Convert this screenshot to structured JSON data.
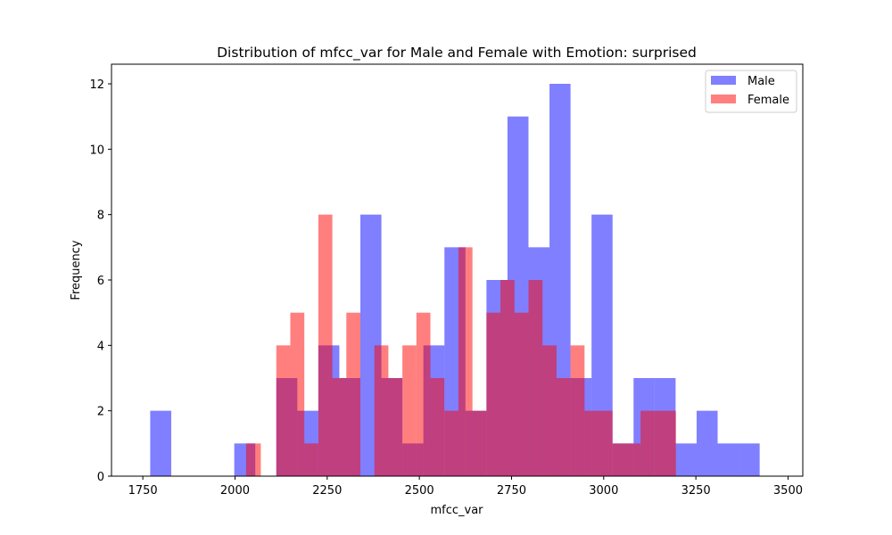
{
  "chart_data": {
    "type": "bar",
    "title": "Distribution of mfcc_var for Male and Female with Emotion: surprised",
    "xlabel": "mfcc_var",
    "ylabel": "Frequency",
    "xlim": [
      1665,
      3540
    ],
    "ylim": [
      0,
      12.6
    ],
    "xticks": [
      1750,
      2000,
      2250,
      2500,
      2750,
      3000,
      3250,
      3500
    ],
    "yticks": [
      0,
      2,
      4,
      6,
      8,
      10,
      12
    ],
    "legend_position": "top-right",
    "series": [
      {
        "name": "Male",
        "color": "#0000ff",
        "opacity": 0.5,
        "bin_edges": [
          1770,
          1827,
          1884,
          1941,
          1998,
          2055,
          2112,
          2169,
          2226,
          2283,
          2340,
          2397,
          2454,
          2511,
          2568,
          2625,
          2682,
          2739,
          2796,
          2853,
          2910,
          2967,
          3024,
          3081,
          3138,
          3195,
          3252,
          3309,
          3366,
          3423,
          3480
        ],
        "counts": [
          2,
          0,
          0,
          0,
          1,
          0,
          3,
          2,
          4,
          3,
          8,
          3,
          1,
          4,
          7,
          2,
          6,
          11,
          7,
          12,
          3,
          8,
          1,
          3,
          3,
          1,
          2,
          1,
          1,
          0
        ],
        "bins_chunk_note": ""
      },
      {
        "name": "Female",
        "color": "#ff0000",
        "opacity": 0.5,
        "bin_edges": [
          2030,
          2050,
          2070,
          2092,
          2112,
          2150,
          2188,
          2226,
          2264,
          2302,
          2340,
          2378,
          2416,
          2454,
          2492,
          2530,
          2568,
          2606,
          2644,
          2682,
          2720,
          2758,
          2796,
          2834,
          2872,
          2910,
          2948,
          2986,
          3024,
          3062,
          3100,
          3138,
          3176,
          3196
        ],
        "counts": [
          1,
          1,
          0,
          0,
          4,
          5,
          1,
          8,
          3,
          5,
          0,
          4,
          3,
          4,
          5,
          3,
          2,
          7,
          2,
          5,
          6,
          5,
          6,
          4,
          3,
          4,
          2,
          2,
          1,
          1,
          2,
          2,
          2
        ]
      }
    ]
  }
}
